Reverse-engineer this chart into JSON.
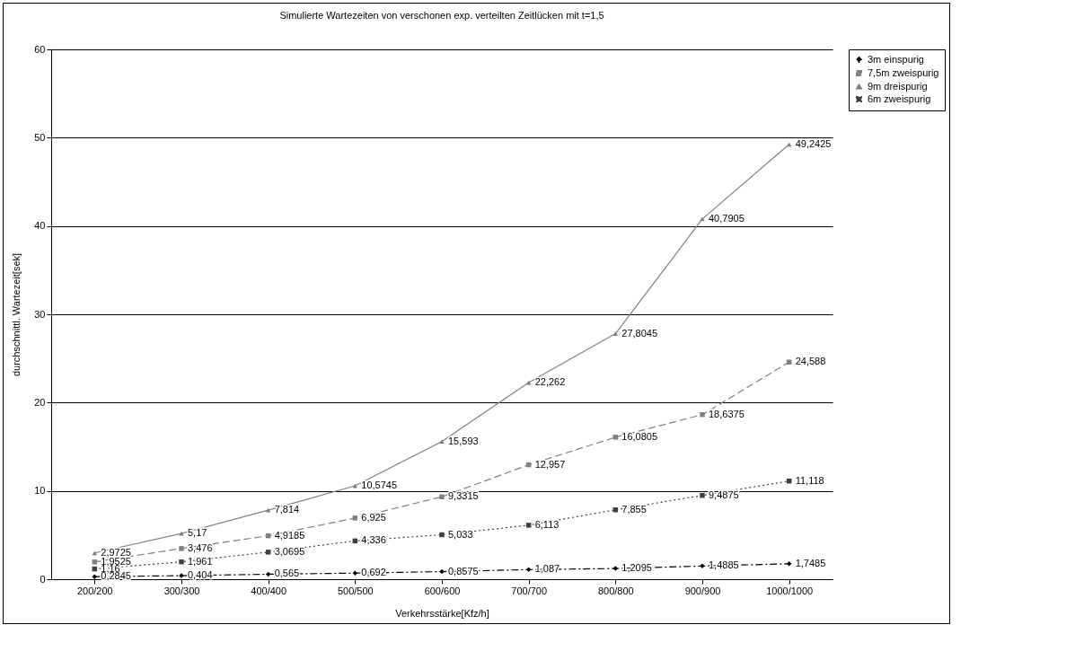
{
  "chart_data": {
    "type": "line",
    "title": "Simulierte Wartezeiten von verschonen exp. verteilten Zeitlücken mit t=1,5",
    "xlabel": "Verkehrsstärke[Kfz/h]",
    "ylabel": "durchschnittl. Wartezeit[sek]",
    "categories": [
      "200/200",
      "300/300",
      "400/400",
      "500/500",
      "600/600",
      "700/700",
      "800/800",
      "900/900",
      "1000/1000"
    ],
    "series": [
      {
        "name": "3m einspurig",
        "color": "#000000",
        "marker": "diamond",
        "line_style": "dashdot",
        "values": [
          0.2845,
          0.404,
          0.565,
          0.692,
          0.8575,
          1.087,
          1.2095,
          1.4885,
          1.7485
        ],
        "value_labels": [
          "0,2845",
          "0,404",
          "0,565",
          "0,692",
          "0,8575",
          "1,087",
          "1,2095",
          "1,4885",
          "1,7485"
        ]
      },
      {
        "name": "7,5m zweispurig",
        "color": "#808080",
        "marker": "square",
        "line_style": "dashed",
        "values": [
          1.9525,
          3.476,
          4.9185,
          6.925,
          9.3315,
          12.957,
          16.0805,
          18.6375,
          24.588
        ],
        "value_labels": [
          "1,9525",
          "3,476",
          "4,9185",
          "6,925",
          "9,3315",
          "12,957",
          "16,0805",
          "18,6375",
          "24,588"
        ]
      },
      {
        "name": "9m dreispurig",
        "color": "#808080",
        "marker": "triangle",
        "line_style": "solid",
        "values": [
          2.9725,
          5.17,
          7.814,
          10.5745,
          15.593,
          22.262,
          27.8045,
          40.7905,
          49.2425
        ],
        "value_labels": [
          "2,9725",
          "5,17",
          "7,814",
          "10,5745",
          "15,593",
          "22,262",
          "27,8045",
          "40,7905",
          "49,2425"
        ]
      },
      {
        "name": "6m zweispurig",
        "color": "#404040",
        "marker": "square",
        "line_style": "dotted",
        "values": [
          1.16,
          1.961,
          3.0695,
          4.336,
          5.033,
          6.113,
          7.855,
          9.4875,
          11.118
        ],
        "value_labels": [
          "1,16",
          "1,961",
          "3,0695",
          "4,336",
          "5,033",
          "6,113",
          "7,855",
          "9,4875",
          "11,118"
        ]
      }
    ],
    "ylim": [
      0,
      60
    ],
    "yticks": [
      0,
      10,
      20,
      30,
      40,
      50,
      60
    ],
    "grid": "y",
    "legend": "right",
    "data_labels": true
  }
}
